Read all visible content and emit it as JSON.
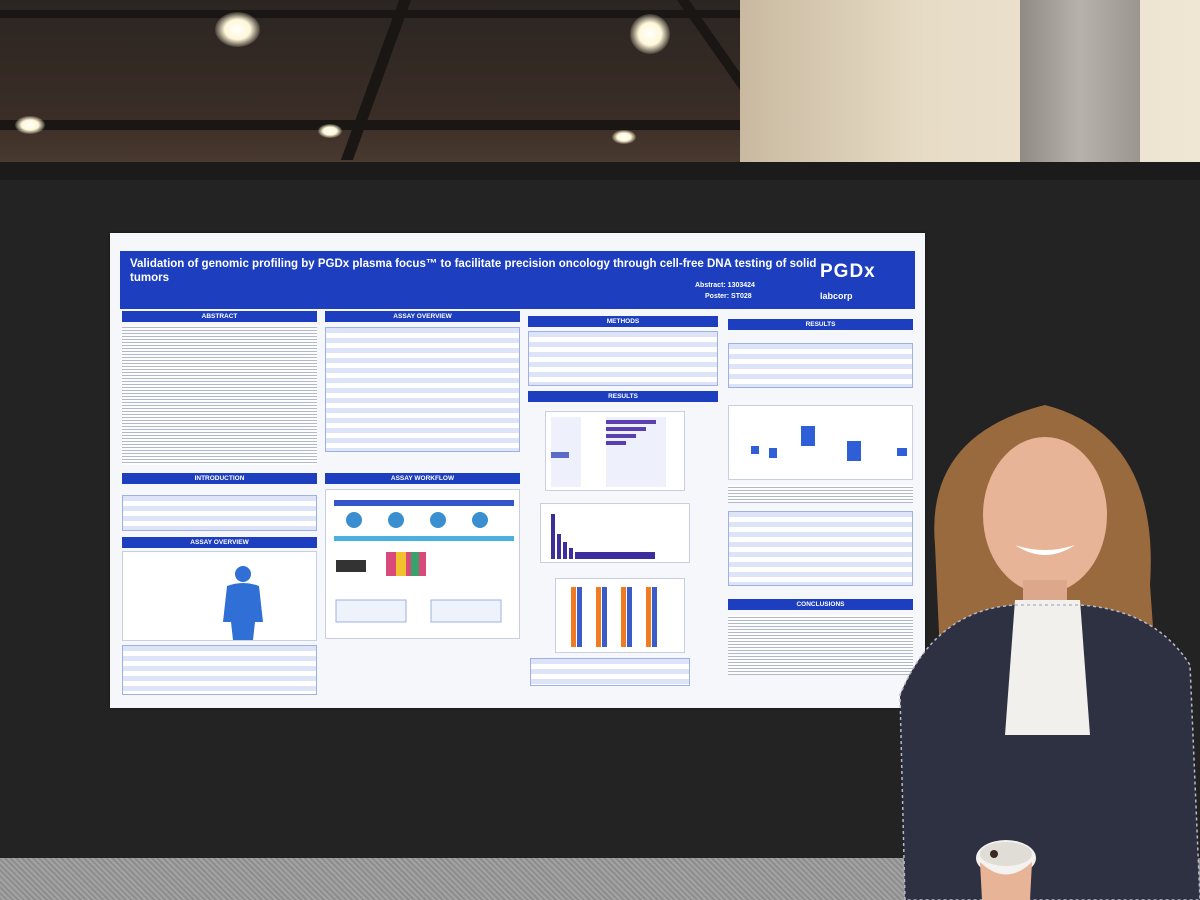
{
  "scene": {
    "description_tag": "conference-poster-session"
  },
  "poster": {
    "title": "Validation of genomic profiling by PGDx plasma focus™ to facilitate precision oncology through cell-free DNA testing of solid tumors",
    "brand": "PGDx",
    "partner": "labcorp",
    "abstract_label": "Abstract: 1303424",
    "poster_label": "Poster: ST028",
    "sections": {
      "abstract": "ABSTRACT",
      "assay_overview": "ASSAY OVERVIEW",
      "methods": "METHODS",
      "results_top": "RESULTS",
      "results_mid": "RESULTS",
      "introduction": "INTRODUCTION",
      "assay_workflow": "ASSAY WORKFLOW",
      "assay_overview_2": "ASSAY OVERVIEW",
      "conclusions": "CONCLUSIONS"
    }
  },
  "colors": {
    "poster_blue": "#1d3fbf",
    "board": "#232323",
    "jacket": "#2d3142",
    "hair": "#9a6a3f"
  }
}
